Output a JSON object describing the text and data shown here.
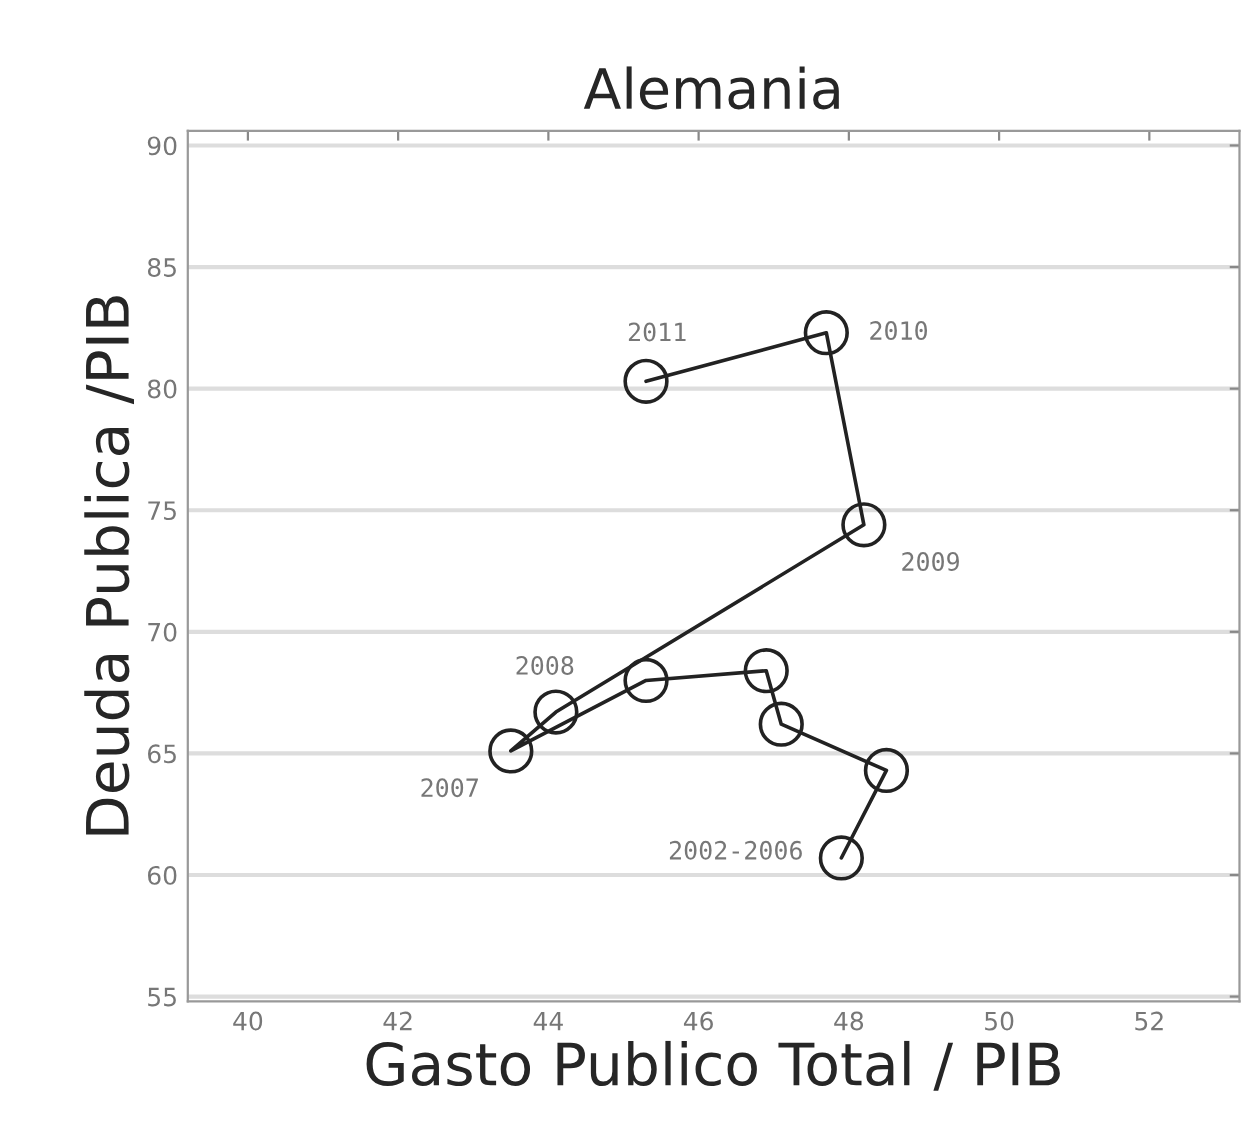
{
  "chart_data": {
    "type": "line",
    "title": "Alemania",
    "xlabel": "Gasto Publico Total / PIB",
    "ylabel": "Deuda Publica /PIB",
    "x": [
      47.9,
      48.5,
      47.1,
      46.9,
      45.3,
      43.5,
      44.1,
      48.2,
      47.7,
      45.3
    ],
    "series": [
      {
        "color": "#222222",
        "values": [
          60.7,
          64.3,
          66.2,
          68.4,
          68.0,
          65.1,
          66.7,
          74.4,
          82.3,
          80.3
        ]
      }
    ],
    "marker": "circle",
    "line_style": "solid",
    "grid": "y",
    "xlim": [
      39.2,
      53.2
    ],
    "xticks": [
      40,
      42,
      44,
      46,
      48,
      50,
      52
    ],
    "ylim": [
      54.8,
      90.6
    ],
    "yticks": [
      55,
      60,
      65,
      70,
      75,
      80,
      85,
      90
    ],
    "annotations": [
      {
        "text": "2011",
        "x": 45.3,
        "y": 80.3
      },
      {
        "text": "2010",
        "x": 47.7,
        "y": 82.3
      },
      {
        "text": "2009",
        "x": 48.2,
        "y": 74.4
      },
      {
        "text": "2008",
        "x": 44.1,
        "y": 66.7
      },
      {
        "text": "2007",
        "x": 43.5,
        "y": 65.1
      },
      {
        "text": "2002-2006",
        "x": 47.9,
        "y": 60.7
      }
    ]
  }
}
